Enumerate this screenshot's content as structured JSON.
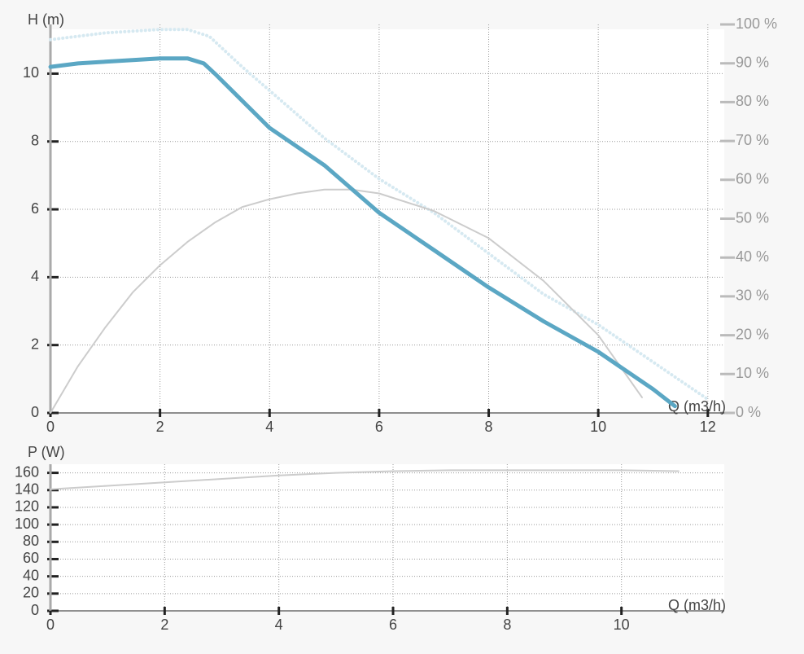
{
  "chart_data": [
    {
      "type": "line",
      "y_label": "H (m)",
      "x_label": "Q (m3/h)",
      "xlim": [
        0,
        12.3
      ],
      "xticks": [
        0,
        2,
        4,
        6,
        8,
        10,
        12
      ],
      "ylim": [
        0,
        11.45
      ],
      "yticks": [
        0,
        2,
        4,
        6,
        8,
        10
      ],
      "y2lim": [
        0,
        100
      ],
      "y2ticks": [
        {
          "value": 0,
          "label": "0 %"
        },
        {
          "value": 10,
          "label": "10 %"
        },
        {
          "value": 20,
          "label": "20 %"
        },
        {
          "value": 30,
          "label": "30 %"
        },
        {
          "value": 40,
          "label": "40 %"
        },
        {
          "value": 50,
          "label": "50 %"
        },
        {
          "value": 60,
          "label": "60 %"
        },
        {
          "value": 70,
          "label": "70 %"
        },
        {
          "value": 80,
          "label": "80 %"
        },
        {
          "value": 90,
          "label": "90 %"
        },
        {
          "value": 100,
          "label": "100 %"
        }
      ],
      "grid": true,
      "series": [
        {
          "color": "#d6e9f1",
          "linestyle": "dotted",
          "x": [
            0,
            1,
            2,
            2.5,
            2.9,
            3.5,
            4,
            5,
            6,
            7,
            8,
            9,
            10,
            11,
            12
          ],
          "values": [
            11.0,
            11.2,
            11.3,
            11.3,
            11.1,
            10.2,
            9.5,
            8.1,
            6.9,
            5.9,
            4.7,
            3.5,
            2.6,
            1.5,
            0.4
          ]
        },
        {
          "color": "#cccccc",
          "axis": "y2",
          "linestyle": "solid",
          "x": [
            0,
            0.5,
            1,
            1.5,
            2,
            2.5,
            3,
            3.5,
            4,
            4.5,
            5,
            5.5,
            6,
            7,
            8,
            9,
            10,
            10.5,
            10.8
          ],
          "values": [
            0,
            12,
            22,
            31,
            38,
            44,
            49,
            53,
            55,
            56.5,
            57.5,
            57.5,
            56.5,
            52,
            45,
            34,
            20,
            10,
            4
          ]
        },
        {
          "color": "#5ba7c4",
          "linestyle": "thick",
          "x": [
            0,
            0.5,
            1,
            1.5,
            2,
            2.5,
            2.8,
            3,
            3.5,
            4,
            5,
            6,
            7,
            8,
            9,
            10,
            11,
            11.4
          ],
          "values": [
            10.2,
            10.3,
            10.35,
            10.4,
            10.45,
            10.45,
            10.3,
            10.0,
            9.2,
            8.4,
            7.3,
            5.9,
            4.8,
            3.7,
            2.7,
            1.8,
            0.7,
            0.2
          ]
        }
      ]
    },
    {
      "type": "line",
      "y_label": "P (W)",
      "x_label": "Q (m3/h)",
      "xlim": [
        0,
        11.8
      ],
      "xticks": [
        0,
        2,
        4,
        6,
        8,
        10
      ],
      "ylim": [
        0,
        170
      ],
      "yticks": [
        0,
        20,
        40,
        60,
        80,
        100,
        120,
        140,
        160
      ],
      "grid": true,
      "series": [
        {
          "color": "#cccccc",
          "linestyle": "solid",
          "x": [
            0,
            1,
            2,
            3,
            4,
            5,
            6,
            7,
            8,
            9,
            10,
            11
          ],
          "values": [
            141,
            145,
            149,
            153,
            157,
            160,
            162,
            163,
            163,
            163,
            163,
            162
          ]
        }
      ]
    }
  ]
}
